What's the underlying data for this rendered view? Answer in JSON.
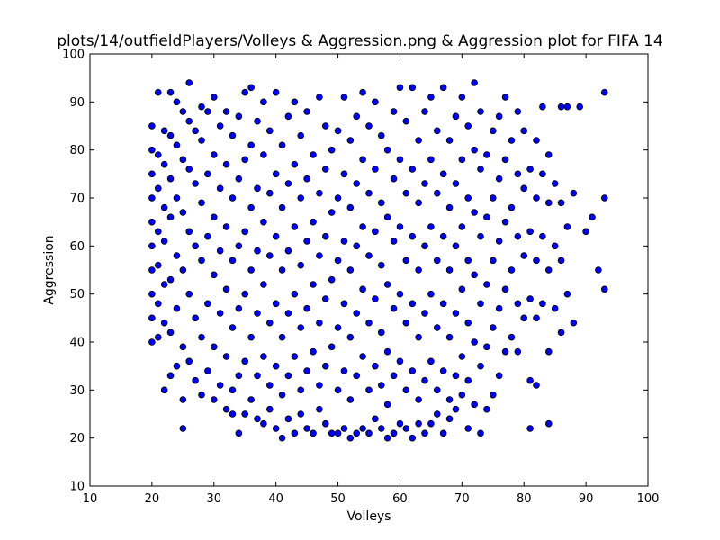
{
  "chart_data": {
    "type": "scatter",
    "title": "plots/14/outfieldPlayers/Volleys & Aggression.png & Aggression plot for FIFA 14",
    "xlabel": "Volleys",
    "ylabel": "Aggression",
    "xlim": [
      10,
      100
    ],
    "ylim": [
      10,
      100
    ],
    "xticks": [
      "10",
      "20",
      "30",
      "40",
      "50",
      "60",
      "70",
      "80",
      "90",
      "100"
    ],
    "yticks": [
      "10",
      "20",
      "30",
      "40",
      "50",
      "60",
      "70",
      "80",
      "90",
      "100"
    ],
    "grid": false,
    "legend": "none",
    "marker_color": "#0000ff",
    "marker_edge": "#000000",
    "points": [
      [
        20,
        40
      ],
      [
        20,
        45
      ],
      [
        20,
        50
      ],
      [
        20,
        55
      ],
      [
        20,
        60
      ],
      [
        20,
        65
      ],
      [
        20,
        70
      ],
      [
        20,
        75
      ],
      [
        20,
        80
      ],
      [
        20,
        85
      ],
      [
        21,
        41
      ],
      [
        21,
        48
      ],
      [
        21,
        56
      ],
      [
        21,
        63
      ],
      [
        21,
        72
      ],
      [
        21,
        79
      ],
      [
        21,
        92
      ],
      [
        22,
        30
      ],
      [
        22,
        44
      ],
      [
        22,
        52
      ],
      [
        22,
        61
      ],
      [
        22,
        68
      ],
      [
        22,
        77
      ],
      [
        22,
        84
      ],
      [
        23,
        33
      ],
      [
        23,
        42
      ],
      [
        23,
        53
      ],
      [
        23,
        66
      ],
      [
        23,
        74
      ],
      [
        23,
        83
      ],
      [
        23,
        92
      ],
      [
        24,
        35
      ],
      [
        24,
        47
      ],
      [
        24,
        58
      ],
      [
        24,
        70
      ],
      [
        24,
        81
      ],
      [
        24,
        90
      ],
      [
        25,
        22
      ],
      [
        25,
        28
      ],
      [
        25,
        39
      ],
      [
        25,
        55
      ],
      [
        25,
        67
      ],
      [
        25,
        78
      ],
      [
        25,
        88
      ],
      [
        26,
        36
      ],
      [
        26,
        50
      ],
      [
        26,
        63
      ],
      [
        26,
        76
      ],
      [
        26,
        86
      ],
      [
        26,
        94
      ],
      [
        27,
        32
      ],
      [
        27,
        45
      ],
      [
        27,
        60
      ],
      [
        27,
        73
      ],
      [
        27,
        84
      ],
      [
        28,
        29
      ],
      [
        28,
        41
      ],
      [
        28,
        57
      ],
      [
        28,
        69
      ],
      [
        28,
        82
      ],
      [
        28,
        89
      ],
      [
        29,
        34
      ],
      [
        29,
        48
      ],
      [
        29,
        62
      ],
      [
        29,
        75
      ],
      [
        29,
        88
      ],
      [
        30,
        28
      ],
      [
        30,
        39
      ],
      [
        30,
        54
      ],
      [
        30,
        66
      ],
      [
        30,
        79
      ],
      [
        30,
        91
      ],
      [
        31,
        31
      ],
      [
        31,
        46
      ],
      [
        31,
        59
      ],
      [
        31,
        72
      ],
      [
        31,
        85
      ],
      [
        32,
        26
      ],
      [
        32,
        37
      ],
      [
        32,
        51
      ],
      [
        32,
        64
      ],
      [
        32,
        77
      ],
      [
        32,
        88
      ],
      [
        33,
        25
      ],
      [
        33,
        30
      ],
      [
        33,
        43
      ],
      [
        33,
        57
      ],
      [
        33,
        70
      ],
      [
        33,
        83
      ],
      [
        34,
        21
      ],
      [
        34,
        33
      ],
      [
        34,
        47
      ],
      [
        34,
        60
      ],
      [
        34,
        74
      ],
      [
        34,
        87
      ],
      [
        35,
        25
      ],
      [
        35,
        36
      ],
      [
        35,
        50
      ],
      [
        35,
        63
      ],
      [
        35,
        78
      ],
      [
        35,
        92
      ],
      [
        36,
        28
      ],
      [
        36,
        41
      ],
      [
        36,
        55
      ],
      [
        36,
        68
      ],
      [
        36,
        81
      ],
      [
        36,
        93
      ],
      [
        37,
        24
      ],
      [
        37,
        33
      ],
      [
        37,
        46
      ],
      [
        37,
        59
      ],
      [
        37,
        72
      ],
      [
        37,
        86
      ],
      [
        38,
        23
      ],
      [
        38,
        37
      ],
      [
        38,
        52
      ],
      [
        38,
        65
      ],
      [
        38,
        79
      ],
      [
        38,
        90
      ],
      [
        39,
        26
      ],
      [
        39,
        31
      ],
      [
        39,
        44
      ],
      [
        39,
        58
      ],
      [
        39,
        71
      ],
      [
        39,
        84
      ],
      [
        40,
        22
      ],
      [
        40,
        35
      ],
      [
        40,
        48
      ],
      [
        40,
        62
      ],
      [
        40,
        75
      ],
      [
        40,
        92
      ],
      [
        41,
        20
      ],
      [
        41,
        29
      ],
      [
        41,
        41
      ],
      [
        41,
        55
      ],
      [
        41,
        68
      ],
      [
        41,
        81
      ],
      [
        42,
        24
      ],
      [
        42,
        33
      ],
      [
        42,
        46
      ],
      [
        42,
        59
      ],
      [
        42,
        73
      ],
      [
        42,
        87
      ],
      [
        43,
        21
      ],
      [
        43,
        37
      ],
      [
        43,
        50
      ],
      [
        43,
        64
      ],
      [
        43,
        77
      ],
      [
        43,
        90
      ],
      [
        44,
        25
      ],
      [
        44,
        30
      ],
      [
        44,
        43
      ],
      [
        44,
        56
      ],
      [
        44,
        70
      ],
      [
        44,
        83
      ],
      [
        45,
        22
      ],
      [
        45,
        34
      ],
      [
        45,
        47
      ],
      [
        45,
        61
      ],
      [
        45,
        74
      ],
      [
        45,
        88
      ],
      [
        46,
        21
      ],
      [
        46,
        38
      ],
      [
        46,
        52
      ],
      [
        46,
        65
      ],
      [
        46,
        79
      ],
      [
        47,
        26
      ],
      [
        47,
        31
      ],
      [
        47,
        44
      ],
      [
        47,
        58
      ],
      [
        47,
        71
      ],
      [
        47,
        91
      ],
      [
        48,
        23
      ],
      [
        48,
        35
      ],
      [
        48,
        49
      ],
      [
        48,
        62
      ],
      [
        48,
        76
      ],
      [
        48,
        85
      ],
      [
        49,
        21
      ],
      [
        49,
        39
      ],
      [
        49,
        53
      ],
      [
        49,
        67
      ],
      [
        49,
        80
      ],
      [
        50,
        21
      ],
      [
        50,
        30
      ],
      [
        50,
        43
      ],
      [
        50,
        57
      ],
      [
        50,
        70
      ],
      [
        50,
        84
      ],
      [
        51,
        22
      ],
      [
        51,
        34
      ],
      [
        51,
        48
      ],
      [
        51,
        61
      ],
      [
        51,
        75
      ],
      [
        51,
        91
      ],
      [
        52,
        20
      ],
      [
        52,
        28
      ],
      [
        52,
        41
      ],
      [
        52,
        55
      ],
      [
        52,
        68
      ],
      [
        52,
        82
      ],
      [
        53,
        21
      ],
      [
        53,
        33
      ],
      [
        53,
        46
      ],
      [
        53,
        60
      ],
      [
        53,
        73
      ],
      [
        53,
        87
      ],
      [
        54,
        22
      ],
      [
        54,
        37
      ],
      [
        54,
        51
      ],
      [
        54,
        64
      ],
      [
        54,
        78
      ],
      [
        54,
        92
      ],
      [
        55,
        21
      ],
      [
        55,
        30
      ],
      [
        55,
        44
      ],
      [
        55,
        58
      ],
      [
        55,
        71
      ],
      [
        55,
        85
      ],
      [
        56,
        24
      ],
      [
        56,
        35
      ],
      [
        56,
        49
      ],
      [
        56,
        63
      ],
      [
        56,
        76
      ],
      [
        56,
        90
      ],
      [
        57,
        22
      ],
      [
        57,
        31
      ],
      [
        57,
        42
      ],
      [
        57,
        56
      ],
      [
        57,
        69
      ],
      [
        57,
        83
      ],
      [
        58,
        20
      ],
      [
        58,
        27
      ],
      [
        58,
        38
      ],
      [
        58,
        52
      ],
      [
        58,
        66
      ],
      [
        58,
        80
      ],
      [
        59,
        21
      ],
      [
        59,
        33
      ],
      [
        59,
        47
      ],
      [
        59,
        61
      ],
      [
        59,
        74
      ],
      [
        59,
        88
      ],
      [
        60,
        23
      ],
      [
        60,
        36
      ],
      [
        60,
        50
      ],
      [
        60,
        64
      ],
      [
        60,
        78
      ],
      [
        60,
        93
      ],
      [
        61,
        22
      ],
      [
        61,
        30
      ],
      [
        61,
        44
      ],
      [
        61,
        57
      ],
      [
        61,
        71
      ],
      [
        61,
        86
      ],
      [
        62,
        20
      ],
      [
        62,
        34
      ],
      [
        62,
        48
      ],
      [
        62,
        62
      ],
      [
        62,
        76
      ],
      [
        62,
        93
      ],
      [
        63,
        23
      ],
      [
        63,
        28
      ],
      [
        63,
        41
      ],
      [
        63,
        55
      ],
      [
        63,
        69
      ],
      [
        63,
        82
      ],
      [
        64,
        21
      ],
      [
        64,
        32
      ],
      [
        64,
        46
      ],
      [
        64,
        60
      ],
      [
        64,
        73
      ],
      [
        64,
        88
      ],
      [
        65,
        23
      ],
      [
        65,
        36
      ],
      [
        65,
        50
      ],
      [
        65,
        64
      ],
      [
        65,
        78
      ],
      [
        65,
        91
      ],
      [
        66,
        25
      ],
      [
        66,
        30
      ],
      [
        66,
        43
      ],
      [
        66,
        57
      ],
      [
        66,
        71
      ],
      [
        66,
        84
      ],
      [
        67,
        21
      ],
      [
        67,
        34
      ],
      [
        67,
        48
      ],
      [
        67,
        62
      ],
      [
        67,
        75
      ],
      [
        67,
        93
      ],
      [
        68,
        24
      ],
      [
        68,
        28
      ],
      [
        68,
        41
      ],
      [
        68,
        55
      ],
      [
        68,
        68
      ],
      [
        68,
        82
      ],
      [
        69,
        26
      ],
      [
        69,
        33
      ],
      [
        69,
        46
      ],
      [
        69,
        60
      ],
      [
        69,
        73
      ],
      [
        69,
        87
      ],
      [
        70,
        29
      ],
      [
        70,
        37
      ],
      [
        70,
        51
      ],
      [
        70,
        64
      ],
      [
        70,
        78
      ],
      [
        70,
        91
      ],
      [
        71,
        22
      ],
      [
        71,
        32
      ],
      [
        71,
        44
      ],
      [
        71,
        57
      ],
      [
        71,
        70
      ],
      [
        71,
        85
      ],
      [
        72,
        27
      ],
      [
        72,
        40
      ],
      [
        72,
        54
      ],
      [
        72,
        67
      ],
      [
        72,
        80
      ],
      [
        72,
        94
      ],
      [
        73,
        21
      ],
      [
        73,
        35
      ],
      [
        73,
        48
      ],
      [
        73,
        62
      ],
      [
        73,
        76
      ],
      [
        73,
        88
      ],
      [
        74,
        26
      ],
      [
        74,
        39
      ],
      [
        74,
        52
      ],
      [
        74,
        66
      ],
      [
        74,
        79
      ],
      [
        75,
        29
      ],
      [
        75,
        43
      ],
      [
        75,
        57
      ],
      [
        75,
        70
      ],
      [
        75,
        84
      ],
      [
        76,
        33
      ],
      [
        76,
        47
      ],
      [
        76,
        61
      ],
      [
        76,
        74
      ],
      [
        76,
        87
      ],
      [
        77,
        38
      ],
      [
        77,
        51
      ],
      [
        77,
        65
      ],
      [
        77,
        78
      ],
      [
        77,
        91
      ],
      [
        78,
        41
      ],
      [
        78,
        55
      ],
      [
        78,
        68
      ],
      [
        78,
        82
      ],
      [
        79,
        38
      ],
      [
        79,
        48
      ],
      [
        79,
        62
      ],
      [
        79,
        75
      ],
      [
        79,
        88
      ],
      [
        80,
        45
      ],
      [
        80,
        58
      ],
      [
        80,
        72
      ],
      [
        80,
        84
      ],
      [
        81,
        22
      ],
      [
        81,
        32
      ],
      [
        81,
        49
      ],
      [
        81,
        63
      ],
      [
        81,
        76
      ],
      [
        82,
        31
      ],
      [
        82,
        45
      ],
      [
        82,
        57
      ],
      [
        82,
        70
      ],
      [
        82,
        82
      ],
      [
        83,
        48
      ],
      [
        83,
        62
      ],
      [
        83,
        75
      ],
      [
        83,
        89
      ],
      [
        84,
        23
      ],
      [
        84,
        38
      ],
      [
        84,
        55
      ],
      [
        84,
        69
      ],
      [
        84,
        79
      ],
      [
        85,
        47
      ],
      [
        85,
        60
      ],
      [
        85,
        73
      ],
      [
        86,
        42
      ],
      [
        86,
        57
      ],
      [
        86,
        69
      ],
      [
        86,
        89
      ],
      [
        87,
        50
      ],
      [
        87,
        64
      ],
      [
        87,
        89
      ],
      [
        88,
        44
      ],
      [
        88,
        71
      ],
      [
        89,
        89
      ],
      [
        90,
        63
      ],
      [
        91,
        66
      ],
      [
        92,
        55
      ],
      [
        93,
        51
      ],
      [
        93,
        70
      ],
      [
        93,
        92
      ]
    ]
  }
}
